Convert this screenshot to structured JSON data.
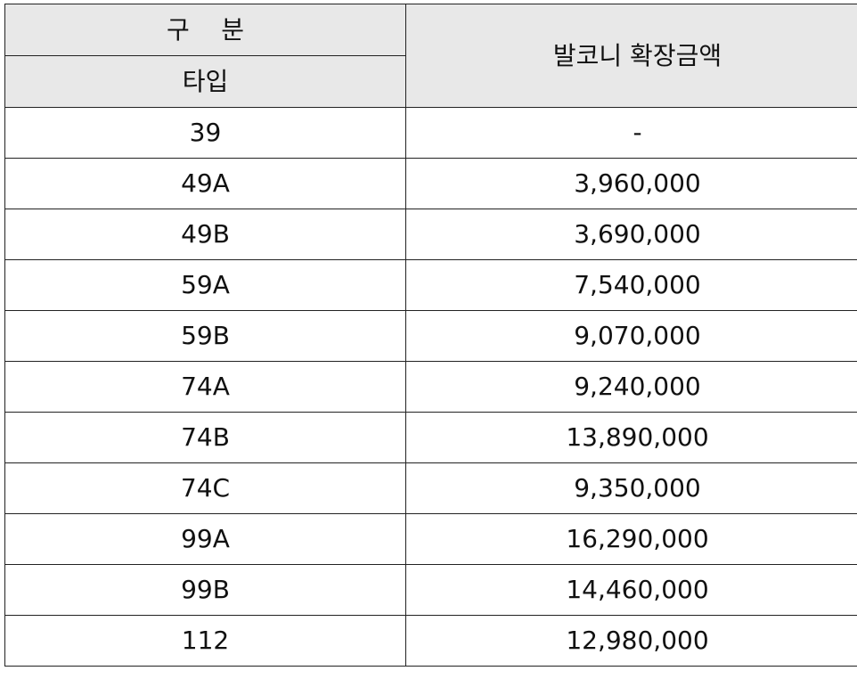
{
  "header": {
    "category": "구    분",
    "type": "타입",
    "amount": "발코니 확장금액"
  },
  "rows": [
    {
      "type": "39",
      "amount": "-"
    },
    {
      "type": "49A",
      "amount": "3,960,000"
    },
    {
      "type": "49B",
      "amount": "3,690,000"
    },
    {
      "type": "59A",
      "amount": "7,540,000"
    },
    {
      "type": "59B",
      "amount": "9,070,000"
    },
    {
      "type": "74A",
      "amount": "9,240,000"
    },
    {
      "type": "74B",
      "amount": "13,890,000"
    },
    {
      "type": "74C",
      "amount": "9,350,000"
    },
    {
      "type": "99A",
      "amount": "16,290,000"
    },
    {
      "type": "99B",
      "amount": "14,460,000"
    },
    {
      "type": "112",
      "amount": "12,980,000"
    }
  ],
  "colors": {
    "header_bg": "#e8e8e8",
    "border": "#222222",
    "text": "#111111"
  }
}
